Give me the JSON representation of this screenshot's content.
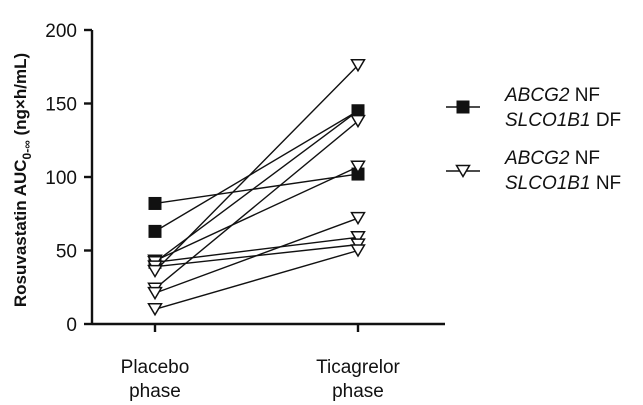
{
  "chart_data": {
    "type": "line",
    "title": "",
    "ylabel_main": "Rosuvastatin AUC",
    "ylabel_sub": "0-∞",
    "ylabel_unit": "(ng×h/mL)",
    "categories": [
      {
        "line1": "Placebo",
        "line2": "phase"
      },
      {
        "line1": "Ticagrelor",
        "line2": "phase"
      }
    ],
    "ylim": [
      0,
      200
    ],
    "yticks": [
      0,
      50,
      100,
      150,
      200
    ],
    "legend_position": "right",
    "groups": [
      {
        "marker": "square",
        "legend": [
          {
            "gene": "ABCG2",
            "phenotype": "NF"
          },
          {
            "gene": "SLCO1B1",
            "phenotype": "DF"
          }
        ],
        "subjects": [
          {
            "placebo": 82,
            "ticagrelor": 102
          },
          {
            "placebo": 63,
            "ticagrelor": 145
          },
          {
            "placebo": 42,
            "ticagrelor": 145
          }
        ]
      },
      {
        "marker": "triangle-down",
        "legend": [
          {
            "gene": "ABCG2",
            "phenotype": "NF"
          },
          {
            "gene": "SLCO1B1",
            "phenotype": "NF"
          }
        ],
        "subjects": [
          {
            "placebo": 43,
            "ticagrelor": 107
          },
          {
            "placebo": 42,
            "ticagrelor": 59
          },
          {
            "placebo": 39,
            "ticagrelor": 54
          },
          {
            "placebo": 36,
            "ticagrelor": 176
          },
          {
            "placebo": 24,
            "ticagrelor": 138
          },
          {
            "placebo": 21,
            "ticagrelor": 72
          },
          {
            "placebo": 10,
            "ticagrelor": 50
          }
        ]
      }
    ],
    "colors": {
      "ink": "#111111",
      "marker_fill_open": "#ffffff"
    }
  }
}
